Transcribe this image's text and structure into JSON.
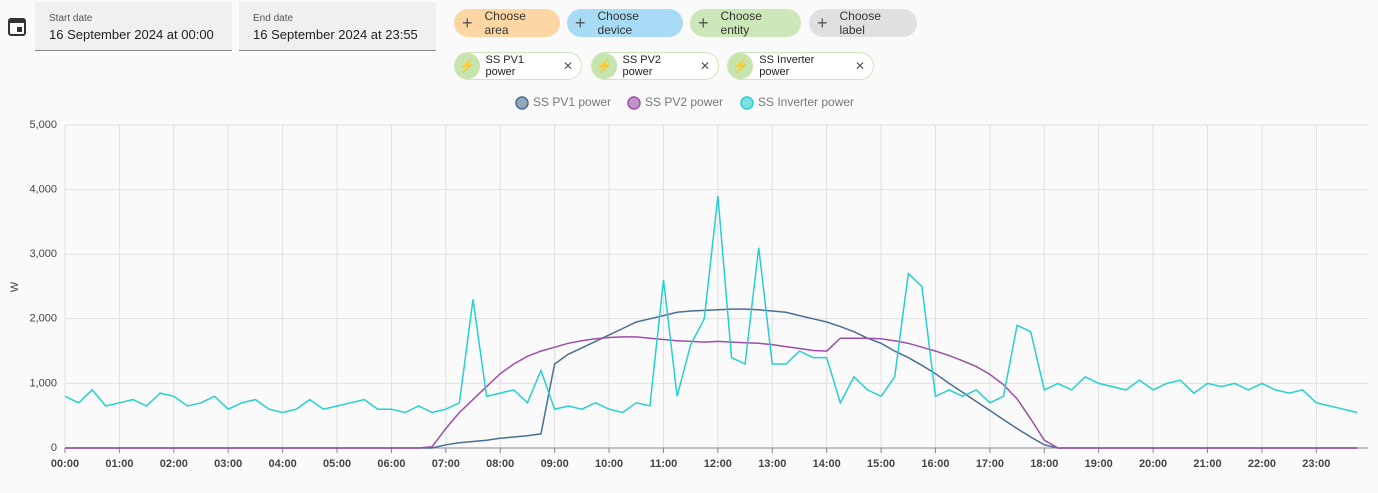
{
  "header": {
    "start_label": "Start date",
    "start_value": "16 September 2024 at 00:00",
    "end_label": "End date",
    "end_value": "16 September 2024 at 23:55",
    "pickers": [
      "Choose area",
      "Choose device",
      "Choose entity",
      "Choose label"
    ],
    "entities": [
      "SS PV1 power",
      "SS PV2 power",
      "SS Inverter power"
    ]
  },
  "chart_data": {
    "type": "line",
    "ylabel": "W",
    "x": [
      0,
      0.25,
      0.5,
      0.75,
      1,
      1.25,
      1.5,
      1.75,
      2,
      2.25,
      2.5,
      2.75,
      3,
      3.25,
      3.5,
      3.75,
      4,
      4.25,
      4.5,
      4.75,
      5,
      5.25,
      5.5,
      5.75,
      6,
      6.25,
      6.5,
      6.75,
      7,
      7.25,
      7.5,
      7.75,
      8,
      8.25,
      8.5,
      8.75,
      9,
      9.25,
      9.5,
      9.75,
      10,
      10.25,
      10.5,
      10.75,
      11,
      11.25,
      11.5,
      11.75,
      12,
      12.25,
      12.5,
      12.75,
      13,
      13.25,
      13.5,
      13.75,
      14,
      14.25,
      14.5,
      14.75,
      15,
      15.25,
      15.5,
      15.75,
      16,
      16.25,
      16.5,
      16.75,
      17,
      17.25,
      17.5,
      17.75,
      18,
      18.25,
      18.5,
      18.75,
      19,
      19.25,
      19.5,
      19.75,
      20,
      20.25,
      20.5,
      20.75,
      21,
      21.25,
      21.5,
      21.75,
      22,
      22.25,
      22.5,
      22.75,
      23,
      23.25,
      23.5,
      23.75
    ],
    "series": [
      {
        "name": "SS PV1 power",
        "color": "#4a6f93",
        "values": [
          0,
          0,
          0,
          0,
          0,
          0,
          0,
          0,
          0,
          0,
          0,
          0,
          0,
          0,
          0,
          0,
          0,
          0,
          0,
          0,
          0,
          0,
          0,
          0,
          0,
          0,
          0,
          0,
          50,
          80,
          100,
          120,
          150,
          170,
          190,
          220,
          1300,
          1450,
          1550,
          1650,
          1750,
          1850,
          1950,
          2000,
          2050,
          2100,
          2120,
          2130,
          2140,
          2150,
          2150,
          2140,
          2120,
          2100,
          2050,
          2000,
          1950,
          1880,
          1800,
          1700,
          1620,
          1500,
          1400,
          1280,
          1150,
          1000,
          860,
          720,
          580,
          440,
          300,
          170,
          50,
          0,
          0,
          0,
          0,
          0,
          0,
          0,
          0,
          0,
          0,
          0,
          0,
          0,
          0,
          0,
          0,
          0,
          0,
          0,
          0,
          0,
          0,
          0
        ]
      },
      {
        "name": "SS PV2 power",
        "color": "#9c4ea8",
        "values": [
          0,
          0,
          0,
          0,
          0,
          0,
          0,
          0,
          0,
          0,
          0,
          0,
          0,
          0,
          0,
          0,
          0,
          0,
          0,
          0,
          0,
          0,
          0,
          0,
          0,
          0,
          0,
          20,
          300,
          550,
          750,
          950,
          1150,
          1300,
          1420,
          1500,
          1560,
          1620,
          1660,
          1690,
          1710,
          1720,
          1720,
          1700,
          1680,
          1660,
          1650,
          1640,
          1650,
          1640,
          1630,
          1620,
          1600,
          1570,
          1540,
          1510,
          1500,
          1700,
          1700,
          1700,
          1690,
          1660,
          1620,
          1560,
          1500,
          1430,
          1350,
          1260,
          1140,
          980,
          760,
          450,
          120,
          0,
          0,
          0,
          0,
          0,
          0,
          0,
          0,
          0,
          0,
          0,
          0,
          0,
          0,
          0,
          0,
          0,
          0,
          0,
          0,
          0,
          0,
          0
        ]
      },
      {
        "name": "SS Inverter power",
        "color": "#27d0d0",
        "values": [
          800,
          700,
          900,
          650,
          700,
          750,
          650,
          850,
          800,
          650,
          700,
          800,
          600,
          700,
          750,
          600,
          550,
          600,
          750,
          600,
          650,
          700,
          750,
          600,
          600,
          550,
          650,
          550,
          600,
          700,
          2300,
          800,
          850,
          900,
          700,
          1200,
          600,
          650,
          600,
          700,
          600,
          550,
          700,
          650,
          2600,
          800,
          1600,
          2000,
          3900,
          1400,
          1300,
          3100,
          1300,
          1300,
          1500,
          1400,
          1400,
          700,
          1100,
          900,
          800,
          1100,
          2700,
          2500,
          800,
          900,
          800,
          900,
          700,
          800,
          1900,
          1800,
          900,
          1000,
          900,
          1100,
          1000,
          950,
          900,
          1050,
          900,
          1000,
          1050,
          850,
          1000,
          950,
          1000,
          900,
          1000,
          900,
          850,
          900,
          700,
          650,
          600,
          550
        ]
      }
    ],
    "xlim": [
      0,
      23.95
    ],
    "ylim": [
      0,
      5000
    ],
    "xticks": [
      {
        "value": 0,
        "label": "00:00"
      },
      {
        "value": 1,
        "label": "01:00"
      },
      {
        "value": 2,
        "label": "02:00"
      },
      {
        "value": 3,
        "label": "03:00"
      },
      {
        "value": 4,
        "label": "04:00"
      },
      {
        "value": 5,
        "label": "05:00"
      },
      {
        "value": 6,
        "label": "06:00"
      },
      {
        "value": 7,
        "label": "07:00"
      },
      {
        "value": 8,
        "label": "08:00"
      },
      {
        "value": 9,
        "label": "09:00"
      },
      {
        "value": 10,
        "label": "10:00"
      },
      {
        "value": 11,
        "label": "11:00"
      },
      {
        "value": 12,
        "label": "12:00"
      },
      {
        "value": 13,
        "label": "13:00"
      },
      {
        "value": 14,
        "label": "14:00"
      },
      {
        "value": 15,
        "label": "15:00"
      },
      {
        "value": 16,
        "label": "16:00"
      },
      {
        "value": 17,
        "label": "17:00"
      },
      {
        "value": 18,
        "label": "18:00"
      },
      {
        "value": 19,
        "label": "19:00"
      },
      {
        "value": 20,
        "label": "20:00"
      },
      {
        "value": 21,
        "label": "21:00"
      },
      {
        "value": 22,
        "label": "22:00"
      },
      {
        "value": 23,
        "label": "23:00"
      }
    ],
    "yticks": [
      0,
      {
        "value": 1000,
        "label": "1,000"
      },
      {
        "value": 2000,
        "label": "2,000"
      },
      {
        "value": 3000,
        "label": "3,000"
      },
      {
        "value": 4000,
        "label": "4,000"
      },
      {
        "value": 5000,
        "label": "5,000"
      }
    ],
    "grid": true
  }
}
